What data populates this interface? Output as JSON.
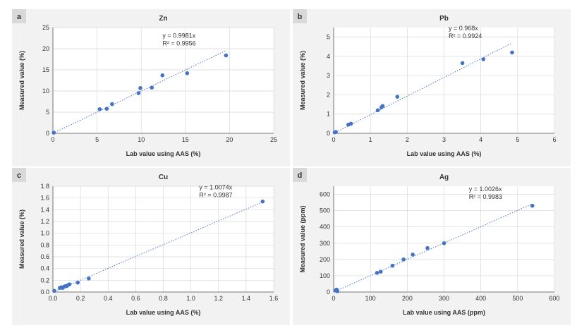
{
  "chart_data": [
    {
      "type": "scatter",
      "panel": "a",
      "title": "Zn",
      "xlabel": "Lab value using AAS (%)",
      "ylabel": "Measured value (%)",
      "xlim": [
        0,
        25
      ],
      "ylim": [
        0,
        25
      ],
      "xticks": [
        "0",
        "5",
        "10",
        "15",
        "20",
        "25"
      ],
      "yticks": [
        "0",
        "5",
        "10",
        "15",
        "20",
        "25"
      ],
      "grid": true,
      "equation": "y = 0.9981x",
      "r2": "R² = 0.9956",
      "slope": 0.9981,
      "points": [
        [
          0.1,
          0.15
        ],
        [
          5.3,
          5.7
        ],
        [
          6.1,
          5.8
        ],
        [
          6.7,
          6.9
        ],
        [
          9.7,
          9.5
        ],
        [
          9.9,
          10.7
        ],
        [
          11.2,
          10.8
        ],
        [
          12.4,
          13.7
        ],
        [
          15.2,
          14.2
        ],
        [
          19.6,
          18.4
        ]
      ]
    },
    {
      "type": "scatter",
      "panel": "b",
      "title": "Pb",
      "xlabel": "Lab value using AAS (%)",
      "ylabel": "Measured value (%)",
      "xlim": [
        0,
        6
      ],
      "ylim": [
        0,
        5.5
      ],
      "xticks": [
        "0",
        "1",
        "2",
        "3",
        "4",
        "5",
        "6"
      ],
      "yticks": [
        "0",
        "1",
        "2",
        "3",
        "4",
        "5"
      ],
      "grid": true,
      "equation": "y = 0.968x",
      "r2": "R² = 0.9924",
      "slope": 0.968,
      "points": [
        [
          0.03,
          0.05
        ],
        [
          0.06,
          0.07
        ],
        [
          0.4,
          0.45
        ],
        [
          0.47,
          0.5
        ],
        [
          1.2,
          1.2
        ],
        [
          1.3,
          1.35
        ],
        [
          1.33,
          1.42
        ],
        [
          1.73,
          1.9
        ],
        [
          3.5,
          3.65
        ],
        [
          4.07,
          3.85
        ],
        [
          4.85,
          4.2
        ]
      ]
    },
    {
      "type": "scatter",
      "panel": "c",
      "title": "Cu",
      "xlabel": "Lab value using AAS (%)",
      "ylabel": "Measured value (%)",
      "xlim": [
        0,
        1.6
      ],
      "ylim": [
        0,
        1.8
      ],
      "xticks": [
        "0.0",
        "0.2",
        "0.4",
        "0.6",
        "0.8",
        "1.0",
        "1.2",
        "1.4",
        "1.6"
      ],
      "yticks": [
        "0.0",
        "0.2",
        "0.4",
        "0.6",
        "0.8",
        "1.0",
        "1.2",
        "1.4",
        "1.6",
        "1.8"
      ],
      "grid": true,
      "equation": "y = 1.0074x",
      "r2": "R² = 0.9987",
      "slope": 1.0074,
      "points": [
        [
          0.01,
          0.02
        ],
        [
          0.05,
          0.07
        ],
        [
          0.06,
          0.08
        ],
        [
          0.07,
          0.07
        ],
        [
          0.08,
          0.09
        ],
        [
          0.09,
          0.1
        ],
        [
          0.1,
          0.1
        ],
        [
          0.11,
          0.12
        ],
        [
          0.12,
          0.13
        ],
        [
          0.18,
          0.16
        ],
        [
          0.26,
          0.23
        ],
        [
          1.52,
          1.54
        ]
      ]
    },
    {
      "type": "scatter",
      "panel": "d",
      "title": "Ag",
      "xlabel": "Lab value using AAS (ppm)",
      "ylabel": "Measured value (ppm)",
      "xlim": [
        0,
        600
      ],
      "ylim": [
        0,
        650
      ],
      "xticks": [
        "0",
        "100",
        "200",
        "300",
        "400",
        "500",
        "600"
      ],
      "yticks": [
        "0",
        "100",
        "200",
        "300",
        "400",
        "500",
        "600"
      ],
      "grid": true,
      "equation": "y = 1.0026x",
      "r2": "R² = 0.9983",
      "slope": 1.0026,
      "points": [
        [
          5,
          10
        ],
        [
          8,
          15
        ],
        [
          10,
          5
        ],
        [
          118,
          118
        ],
        [
          128,
          125
        ],
        [
          160,
          162
        ],
        [
          190,
          200
        ],
        [
          215,
          230
        ],
        [
          255,
          270
        ],
        [
          300,
          300
        ],
        [
          540,
          530
        ]
      ]
    }
  ],
  "colors": {
    "panel_bg": "#f2f2f2",
    "plot_bg": "#ffffff",
    "marker": "#4472c4",
    "trendline": "#4472c4",
    "badge_bg": "#d9d9d9"
  }
}
